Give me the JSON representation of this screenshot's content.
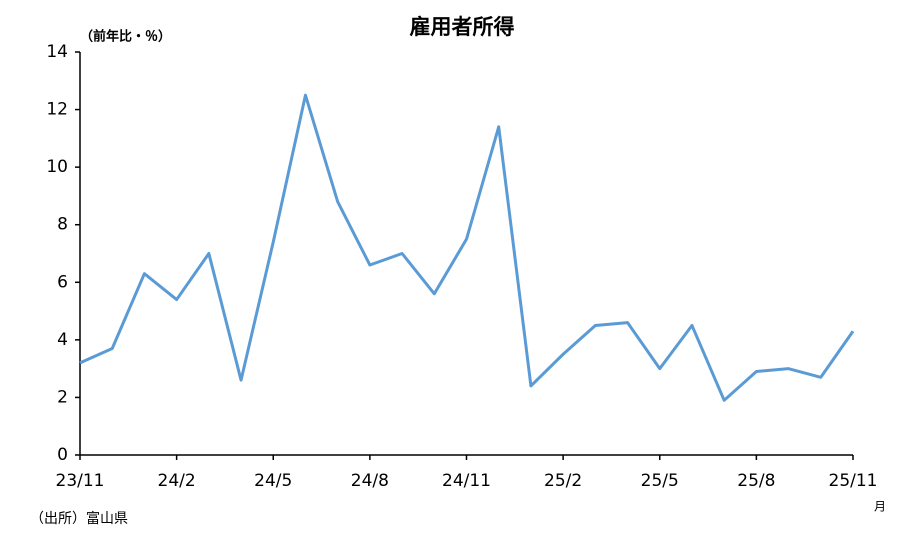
{
  "chart_data": {
    "type": "line",
    "title": "雇用者所得",
    "y_label": "（前年比・％）",
    "x_unit": "月",
    "source": "（出所）富山県",
    "categories": [
      "23/11",
      null,
      null,
      "24/2",
      null,
      null,
      "24/5",
      null,
      null,
      "24/8",
      null,
      null,
      "24/11",
      null,
      null,
      "25/2",
      null,
      null,
      "25/5",
      null,
      null,
      "25/8",
      null,
      null,
      "25/11"
    ],
    "series": [
      {
        "name": "雇用者所得",
        "color": "#5b9bd5",
        "values": [
          3.2,
          3.7,
          6.3,
          5.4,
          7.0,
          2.6,
          7.4,
          12.5,
          8.8,
          6.6,
          7.0,
          5.6,
          7.5,
          11.4,
          2.4,
          3.5,
          4.5,
          4.6,
          3.0,
          4.5,
          1.9,
          2.9,
          3.0,
          2.7,
          4.3
        ]
      }
    ],
    "ylim": [
      0,
      14
    ],
    "yticks": [
      0,
      2,
      4,
      6,
      8,
      10,
      12,
      14
    ],
    "grid": false
  }
}
